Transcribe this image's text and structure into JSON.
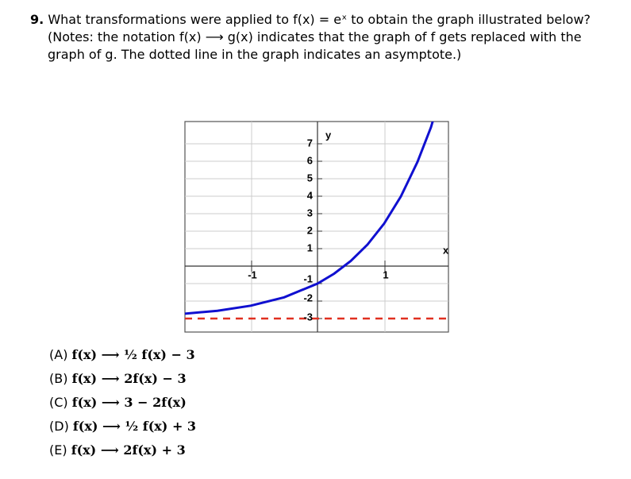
{
  "question": {
    "number": "9.",
    "lines": [
      "What transformations were applied to f(x) = eˣ to obtain the graph illustrated below?",
      "(Notes: the notation f(x) ⟶ g(x) indicates that the graph of f gets replaced with the",
      "graph of g.  The dotted line in the graph indicates an asymptote.)"
    ]
  },
  "graph": {
    "y_labels": [
      "7",
      "6",
      "5",
      "4",
      "3",
      "2",
      "1",
      "-1",
      "-2",
      "-3"
    ],
    "x_labels": [
      "-1",
      "1"
    ],
    "x_axis": "x",
    "y_axis": "y"
  },
  "options": [
    {
      "label": "(A)",
      "expr": "f(x) ⟶ ½ f(x) − 3"
    },
    {
      "label": "(B)",
      "expr": "f(x) ⟶ 2f(x) − 3"
    },
    {
      "label": "(C)",
      "expr": "f(x) ⟶ 3 − 2f(x)"
    },
    {
      "label": "(D)",
      "expr": "f(x) ⟶ ½ f(x) + 3"
    },
    {
      "label": "(E)",
      "expr": "f(x) ⟶ 2f(x) + 3"
    }
  ]
}
